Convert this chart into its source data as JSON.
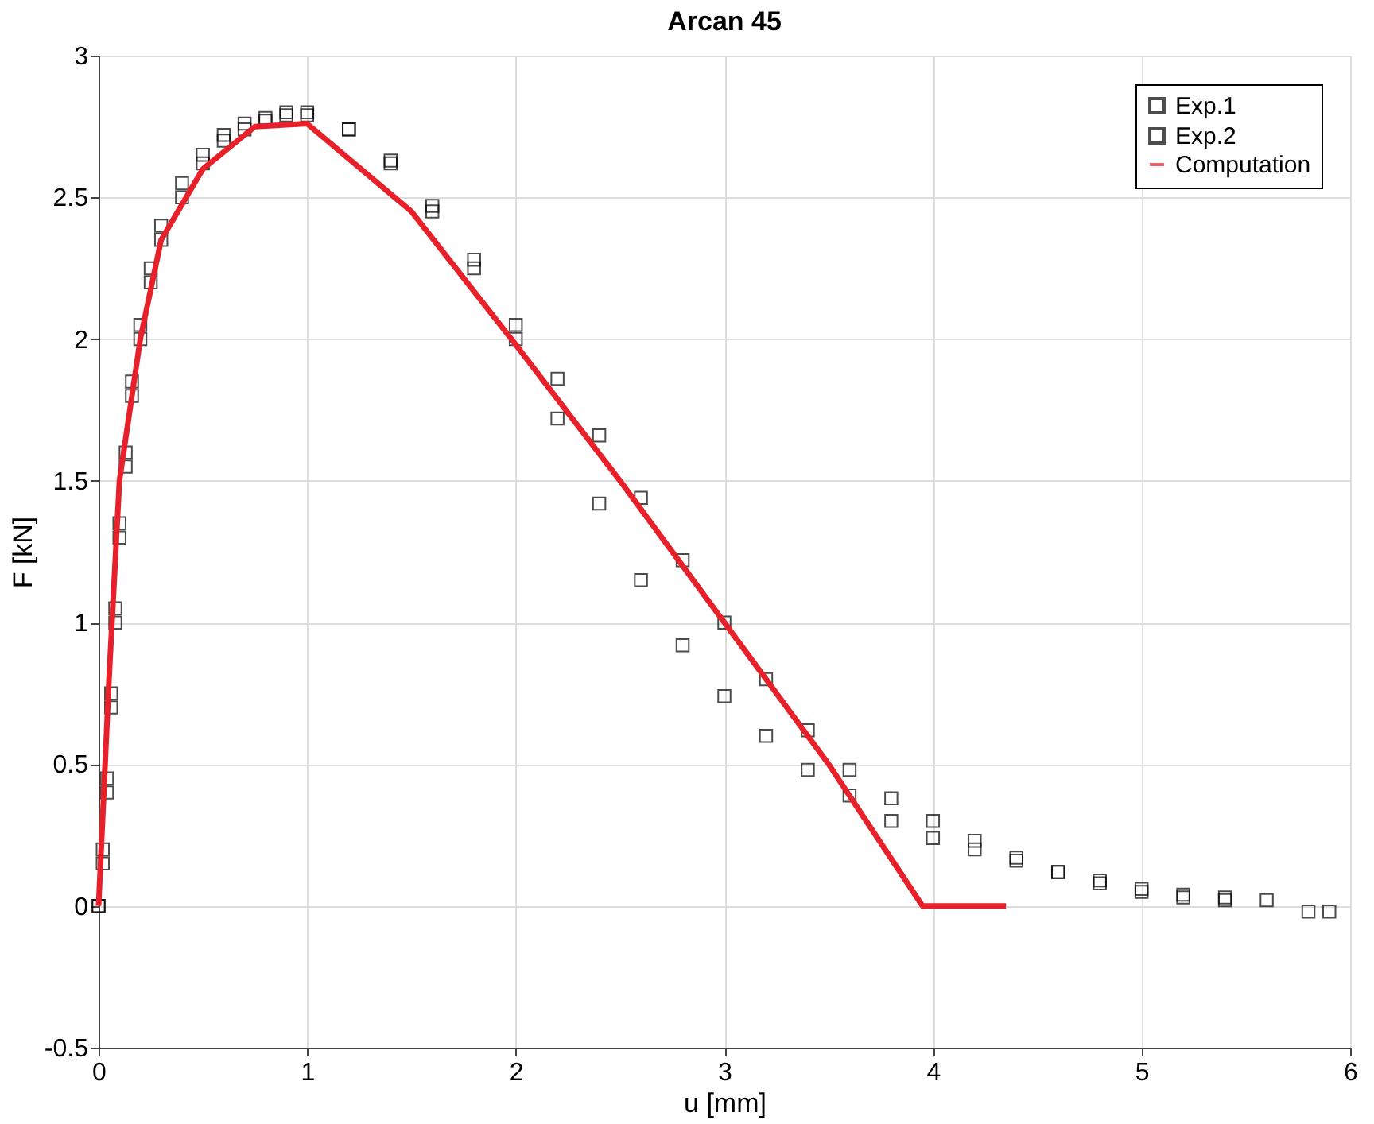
{
  "chart_data": {
    "type": "scatter",
    "title": "Arcan 45",
    "xlabel": "u [mm]",
    "ylabel": "F [kN]",
    "xlim": [
      0,
      6
    ],
    "xticks": [
      0,
      1,
      2,
      3,
      4,
      5,
      6
    ],
    "ylim": [
      -0.5,
      3
    ],
    "yticks": [
      -0.5,
      0,
      0.5,
      1,
      1.5,
      2,
      2.5,
      3
    ],
    "grid": true,
    "legend": "top right",
    "series": [
      {
        "name": "Exp.1",
        "marker": "square",
        "color": "#000000",
        "x": [
          0,
          0.02,
          0.04,
          0.06,
          0.08,
          0.1,
          0.13,
          0.16,
          0.2,
          0.25,
          0.3,
          0.4,
          0.5,
          0.6,
          0.7,
          0.8,
          0.9,
          1.0,
          1.2,
          1.4,
          1.6,
          1.8,
          2.0,
          2.2,
          2.4,
          2.6,
          2.8,
          3.0,
          3.2,
          3.4,
          3.6,
          3.8,
          4.0,
          4.2,
          4.4,
          4.6,
          4.8,
          5.0,
          5.2,
          5.4,
          5.6,
          5.8,
          5.9
        ],
        "values": [
          0,
          0.2,
          0.45,
          0.75,
          1.05,
          1.35,
          1.6,
          1.85,
          2.05,
          2.25,
          2.4,
          2.55,
          2.65,
          2.72,
          2.76,
          2.78,
          2.8,
          2.8,
          2.74,
          2.62,
          2.45,
          2.25,
          2.0,
          1.72,
          1.42,
          1.15,
          0.92,
          0.74,
          0.6,
          0.48,
          0.39,
          0.3,
          0.24,
          0.2,
          0.16,
          0.12,
          0.09,
          0.06,
          0.04,
          0.03,
          0.02,
          -0.02,
          -0.02
        ]
      },
      {
        "name": "Exp.2",
        "marker": "square",
        "color": "#000000",
        "x": [
          0,
          0.02,
          0.04,
          0.06,
          0.08,
          0.1,
          0.13,
          0.16,
          0.2,
          0.25,
          0.3,
          0.4,
          0.5,
          0.6,
          0.7,
          0.8,
          0.9,
          1.0,
          1.2,
          1.4,
          1.6,
          1.8,
          2.0,
          2.2,
          2.4,
          2.6,
          2.8,
          3.0,
          3.2,
          3.4,
          3.6,
          3.8,
          4.0,
          4.2,
          4.4,
          4.6,
          4.8,
          5.0,
          5.2,
          5.4
        ],
        "values": [
          0,
          0.15,
          0.4,
          0.7,
          1.0,
          1.3,
          1.55,
          1.8,
          2.0,
          2.2,
          2.35,
          2.5,
          2.62,
          2.7,
          2.74,
          2.77,
          2.79,
          2.79,
          2.74,
          2.63,
          2.47,
          2.28,
          2.05,
          1.86,
          1.66,
          1.44,
          1.22,
          1.0,
          0.8,
          0.62,
          0.48,
          0.38,
          0.3,
          0.23,
          0.17,
          0.12,
          0.08,
          0.05,
          0.03,
          0.02
        ]
      },
      {
        "name": "Computation",
        "type": "line",
        "marker": "none",
        "line_style": "solid",
        "color": "#e8202a",
        "x": [
          0,
          0.05,
          0.1,
          0.2,
          0.3,
          0.5,
          0.75,
          1.0,
          1.5,
          2.0,
          2.5,
          3.0,
          3.5,
          3.95,
          4.35
        ],
        "values": [
          0,
          0.8,
          1.5,
          2.0,
          2.35,
          2.6,
          2.75,
          2.76,
          2.45,
          1.98,
          1.5,
          1.0,
          0.5,
          0,
          0
        ]
      }
    ]
  }
}
